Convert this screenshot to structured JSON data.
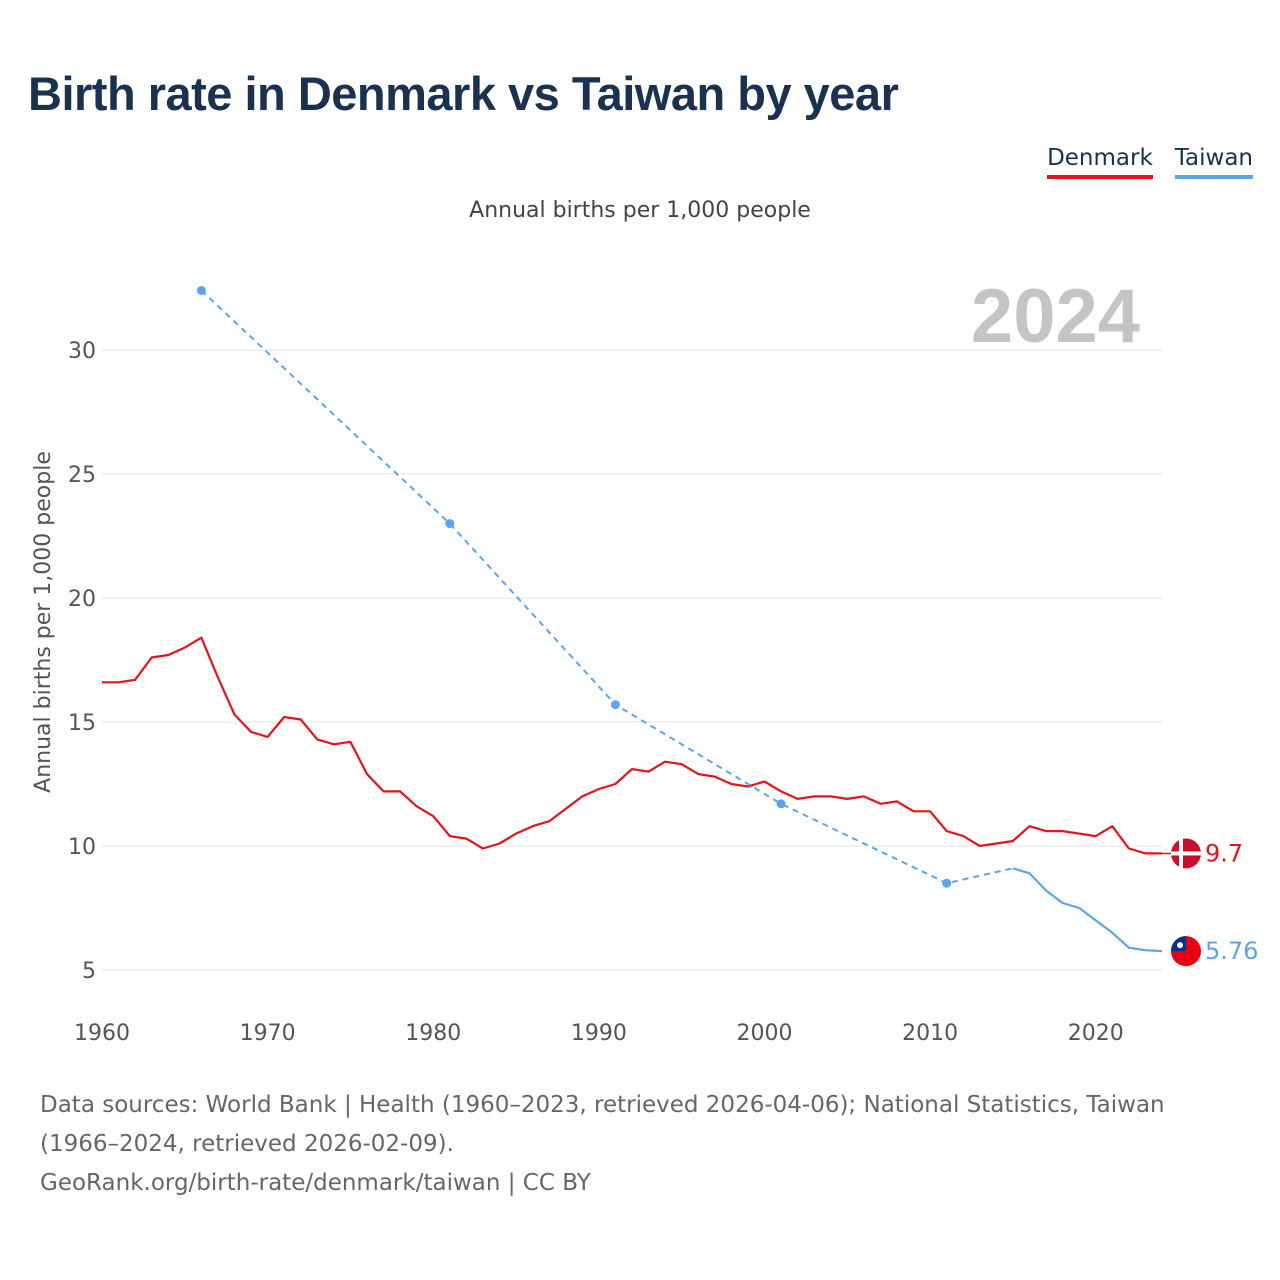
{
  "title": "Birth rate in Denmark vs Taiwan by year",
  "legend": [
    {
      "label": "Denmark",
      "color": "#e8121b"
    },
    {
      "label": "Taiwan",
      "color": "#5ba5e8"
    }
  ],
  "subtitle": "Annual births per 1,000 people",
  "year_watermark": "2024",
  "footer": {
    "sources": "Data sources: World Bank | Health (1960–2023, retrieved 2026-04-06); National Statistics, Taiwan (1966–2024, retrieved 2026-02-09).",
    "credit": "GeoRank.org/birth-rate/denmark/taiwan | CC BY"
  },
  "chart_data": {
    "type": "line",
    "title": "Birth rate in Denmark vs Taiwan by year",
    "xlabel": "",
    "ylabel": "Annual births per 1,000 people",
    "xlim": [
      1960,
      2024
    ],
    "ylim": [
      5,
      33
    ],
    "xticks": [
      1960,
      1970,
      1980,
      1990,
      2000,
      2010,
      2020
    ],
    "yticks": [
      5,
      10,
      15,
      20,
      25,
      30
    ],
    "grid": true,
    "series": [
      {
        "name": "Denmark",
        "color": "#e8121b",
        "end_label": "9.7",
        "x": [
          1960,
          1961,
          1962,
          1963,
          1964,
          1965,
          1966,
          1967,
          1968,
          1969,
          1970,
          1971,
          1972,
          1973,
          1974,
          1975,
          1976,
          1977,
          1978,
          1979,
          1980,
          1981,
          1982,
          1983,
          1984,
          1985,
          1986,
          1987,
          1988,
          1989,
          1990,
          1991,
          1992,
          1993,
          1994,
          1995,
          1996,
          1997,
          1998,
          1999,
          2000,
          2001,
          2002,
          2003,
          2004,
          2005,
          2006,
          2007,
          2008,
          2009,
          2010,
          2011,
          2012,
          2013,
          2014,
          2015,
          2016,
          2017,
          2018,
          2019,
          2020,
          2021,
          2022,
          2023,
          2024
        ],
        "y": [
          16.6,
          16.6,
          16.7,
          17.6,
          17.7,
          18.0,
          18.4,
          16.8,
          15.3,
          14.6,
          14.4,
          15.2,
          15.1,
          14.3,
          14.1,
          14.2,
          12.9,
          12.2,
          12.2,
          11.6,
          11.2,
          10.4,
          10.3,
          9.9,
          10.1,
          10.5,
          10.8,
          11.0,
          11.5,
          12.0,
          12.3,
          12.5,
          13.1,
          13.0,
          13.4,
          13.3,
          12.9,
          12.8,
          12.5,
          12.4,
          12.6,
          12.2,
          11.9,
          12.0,
          12.0,
          11.9,
          12.0,
          11.7,
          11.8,
          11.4,
          11.4,
          10.6,
          10.4,
          10.0,
          10.1,
          10.2,
          10.8,
          10.6,
          10.6,
          10.5,
          10.4,
          10.8,
          9.9,
          9.7,
          9.7
        ]
      },
      {
        "name": "Taiwan",
        "color": "#5ba5e8",
        "end_label": "5.76",
        "dashed_points": [
          [
            1966,
            32.4
          ],
          [
            1981,
            23.0
          ],
          [
            1991,
            15.7
          ],
          [
            2001,
            11.7
          ],
          [
            2011,
            8.5
          ],
          [
            2015,
            9.1
          ]
        ],
        "x": [
          2015,
          2016,
          2017,
          2018,
          2019,
          2020,
          2021,
          2022,
          2023,
          2024
        ],
        "y": [
          9.1,
          8.9,
          8.2,
          7.7,
          7.5,
          7.0,
          6.5,
          5.9,
          5.8,
          5.76
        ]
      }
    ]
  }
}
